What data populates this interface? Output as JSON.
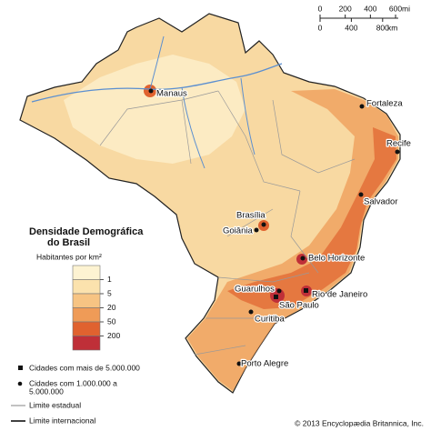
{
  "scale_bar": {
    "miles": {
      "ticks": [
        0,
        200,
        400,
        600
      ],
      "unit": "mi"
    },
    "kilometers": {
      "ticks": [
        0,
        400,
        800
      ],
      "unit": "km"
    }
  },
  "legend": {
    "title": [
      "Densidade Demográfica",
      "do Brasil"
    ],
    "subtitle": "Habitantes por km²",
    "breaks": [
      1,
      5,
      20,
      50,
      200
    ],
    "colors": [
      "#fdf3d2",
      "#fbe2ad",
      "#f7c483",
      "#ef9b57",
      "#e0622f",
      "#bf2f38"
    ]
  },
  "symbols": {
    "big_cities": "Cidades com mais de 5.000.000",
    "mid_cities": [
      "Cidades com 1.000.000 a",
      "5.000.000"
    ],
    "state_border": "Limite estadual",
    "intl_border": "Limite internacional"
  },
  "cities": [
    "Manaus",
    "Fortaleza",
    "Recife",
    "Salvador",
    "Brasília",
    "Goiânia",
    "Belo Horizonte",
    "Rio de Janeiro",
    "São Paulo",
    "Guarulhos",
    "Curitiba",
    "Porto Alegre"
  ],
  "credit": "© 2013 Encyclopædia Britannica, Inc."
}
